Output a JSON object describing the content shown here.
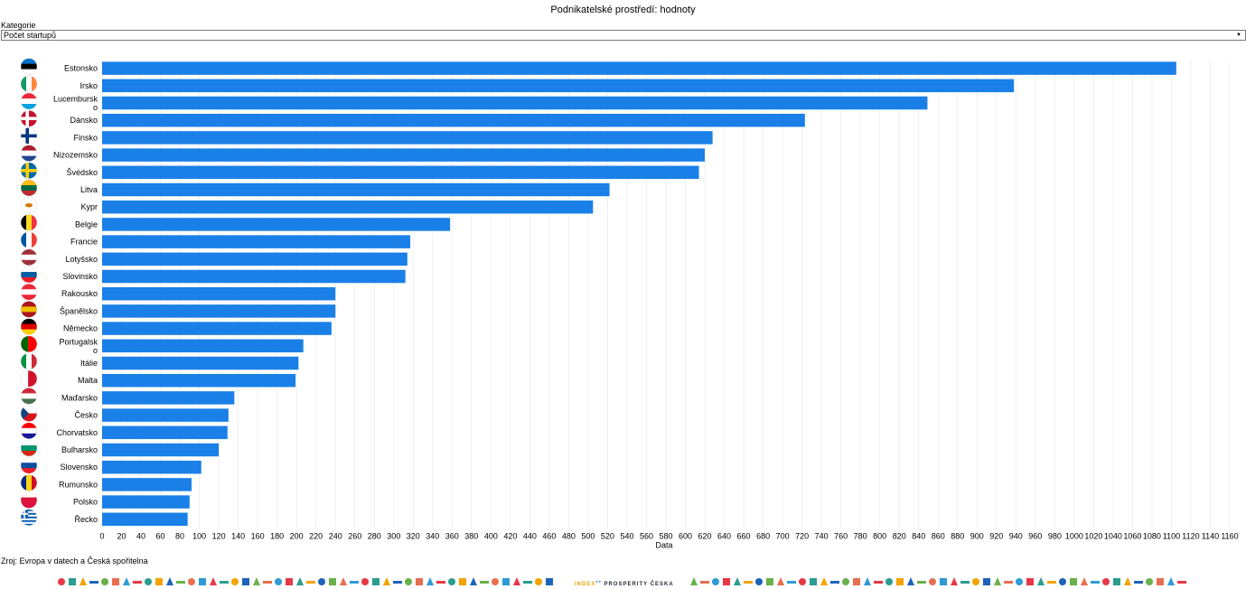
{
  "header": {
    "title": "Podnikatelské prostředí: hodnoty"
  },
  "filter": {
    "label": "Kategorie",
    "selected": "Počet startupů"
  },
  "source": "Zroj: Evropa v datech a Česká spořitelna",
  "footer": {
    "brand_index": "INDEX",
    "brand_sup": "če",
    "brand_prosperity": "PROSPERITY",
    "brand_ceska": "ČESKA"
  },
  "chart_data": {
    "type": "bar",
    "orientation": "horizontal",
    "xlabel": "Data",
    "xlim": [
      0,
      1160
    ],
    "xticks": [
      0,
      20,
      40,
      60,
      80,
      100,
      120,
      140,
      160,
      180,
      200,
      220,
      240,
      260,
      280,
      300,
      320,
      340,
      360,
      380,
      400,
      420,
      440,
      460,
      480,
      500,
      520,
      540,
      560,
      580,
      600,
      620,
      640,
      660,
      680,
      700,
      720,
      740,
      760,
      780,
      800,
      820,
      840,
      860,
      880,
      900,
      920,
      940,
      960,
      980,
      1000,
      1020,
      1040,
      1060,
      1080,
      1100,
      1120,
      1140,
      1160
    ],
    "bar_color": "#1a80e8",
    "categories": [
      {
        "label": "Estonsko",
        "flag": "ee",
        "value": 1105
      },
      {
        "label": "Irsko",
        "flag": "ie",
        "value": 938
      },
      {
        "label": "Lucembursko",
        "flag": "lu",
        "value": 849
      },
      {
        "label": "Dánsko",
        "flag": "dk",
        "value": 723
      },
      {
        "label": "Finsko",
        "flag": "fi",
        "value": 628
      },
      {
        "label": "Nizozemsko",
        "flag": "nl",
        "value": 620
      },
      {
        "label": "Švédsko",
        "flag": "se",
        "value": 614
      },
      {
        "label": "Litva",
        "flag": "lt",
        "value": 522
      },
      {
        "label": "Kypr",
        "flag": "cy",
        "value": 505
      },
      {
        "label": "Belgie",
        "flag": "be",
        "value": 358
      },
      {
        "label": "Francie",
        "flag": "fr",
        "value": 317
      },
      {
        "label": "Lotyšsko",
        "flag": "lv",
        "value": 314
      },
      {
        "label": "Slovinsko",
        "flag": "si",
        "value": 312
      },
      {
        "label": "Rakousko",
        "flag": "at",
        "value": 240
      },
      {
        "label": "Španělsko",
        "flag": "es",
        "value": 240
      },
      {
        "label": "Německo",
        "flag": "de",
        "value": 236
      },
      {
        "label": "Portugalsko",
        "flag": "pt",
        "value": 207
      },
      {
        "label": "Itálie",
        "flag": "it",
        "value": 202
      },
      {
        "label": "Malta",
        "flag": "mt",
        "value": 199
      },
      {
        "label": "Maďarsko",
        "flag": "hu",
        "value": 136
      },
      {
        "label": "Česko",
        "flag": "cz",
        "value": 130
      },
      {
        "label": "Chorvatsko",
        "flag": "hr",
        "value": 129
      },
      {
        "label": "Bulharsko",
        "flag": "bg",
        "value": 120
      },
      {
        "label": "Slovensko",
        "flag": "sk",
        "value": 102
      },
      {
        "label": "Rumunsko",
        "flag": "ro",
        "value": 92
      },
      {
        "label": "Polsko",
        "flag": "pl",
        "value": 90
      },
      {
        "label": "Řecko",
        "flag": "gr",
        "value": 88
      }
    ]
  }
}
